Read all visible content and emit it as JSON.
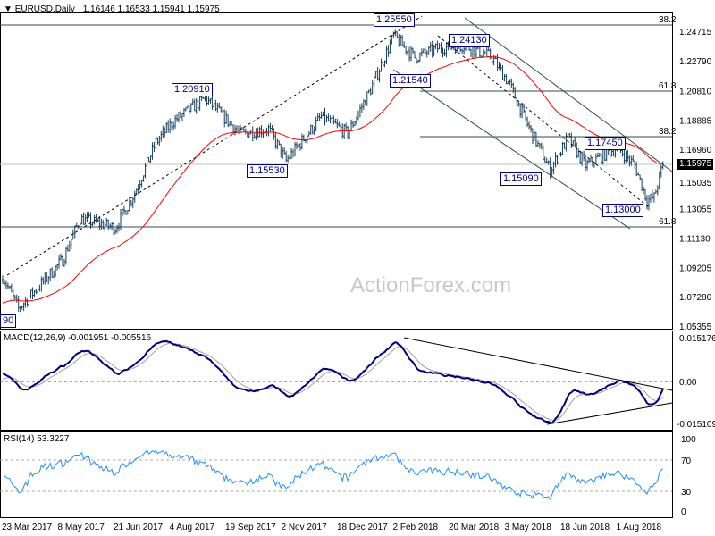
{
  "header": {
    "symbol": "EURUSD,Daily",
    "ohlc": "1.16146 1.16533 1.15941 1.15975"
  },
  "watermark": "ActionForex.com",
  "colors": {
    "bars": "#17405e",
    "ma": "#ff0000",
    "macd": "#000080",
    "signal": "#a0a0a0",
    "rsi": "#1e90ff",
    "label": "#00008b"
  },
  "chart_data": [
    {
      "type": "ohlc",
      "title": "EURUSD,Daily",
      "current_price": "1.15975",
      "y_ticks": [
        "1.24715",
        "1.22790",
        "1.20810",
        "1.18885",
        "1.16960",
        "1.15035",
        "1.13055",
        "1.11130",
        "1.09205",
        "1.07280",
        "1.05355"
      ],
      "ylim": [
        1.05355,
        1.24715
      ],
      "x_ticks": [
        "23 Mar 2017",
        "8 May 2017",
        "21 Jun 2017",
        "4 Aug 2017",
        "19 Sep 2017",
        "2 Nov 2017",
        "18 Dec 2017",
        "2 Feb 2018",
        "20 Mar 2018",
        "3 May 2018",
        "18 Jun 2018",
        "1 Aug 2018"
      ],
      "bar_count": 376,
      "close_anchors": [
        [
          0,
          1.086
        ],
        [
          9,
          1.065
        ],
        [
          21,
          1.08
        ],
        [
          34,
          1.097
        ],
        [
          44,
          1.124
        ],
        [
          64,
          1.118
        ],
        [
          75,
          1.141
        ],
        [
          87,
          1.174
        ],
        [
          97,
          1.188
        ],
        [
          115,
          1.203
        ],
        [
          135,
          1.18
        ],
        [
          151,
          1.183
        ],
        [
          161,
          1.162
        ],
        [
          181,
          1.191
        ],
        [
          196,
          1.18
        ],
        [
          209,
          1.209
        ],
        [
          222,
          1.244
        ],
        [
          234,
          1.23
        ],
        [
          247,
          1.236
        ],
        [
          262,
          1.238
        ],
        [
          278,
          1.23
        ],
        [
          288,
          1.212
        ],
        [
          298,
          1.186
        ],
        [
          311,
          1.156
        ],
        [
          321,
          1.177
        ],
        [
          331,
          1.159
        ],
        [
          349,
          1.171
        ],
        [
          359,
          1.159
        ],
        [
          366,
          1.136
        ],
        [
          370,
          1.138
        ],
        [
          375,
          1.15975
        ]
      ],
      "price_labels": [
        "1.25550",
        "1.24130",
        "1.21540",
        "1.20910",
        "1.15530",
        "1.15090",
        "1.17450",
        "1.13000",
        "90"
      ],
      "fib_labels": [
        "38.2",
        "61.8",
        "38.2",
        "61.8"
      ]
    },
    {
      "type": "line",
      "title": "MACD(12,26,9) -0.001951 -0.005516",
      "y_ticks": [
        "0.015176",
        "0.00",
        "-0.015109"
      ],
      "ylim": [
        -0.015109,
        0.015176
      ]
    },
    {
      "type": "line",
      "title": "RSI(14) 53.3227",
      "y_ticks": [
        "100",
        "70",
        "30",
        "0"
      ],
      "ylim": [
        0,
        100
      ],
      "levels": [
        70,
        30
      ]
    }
  ]
}
